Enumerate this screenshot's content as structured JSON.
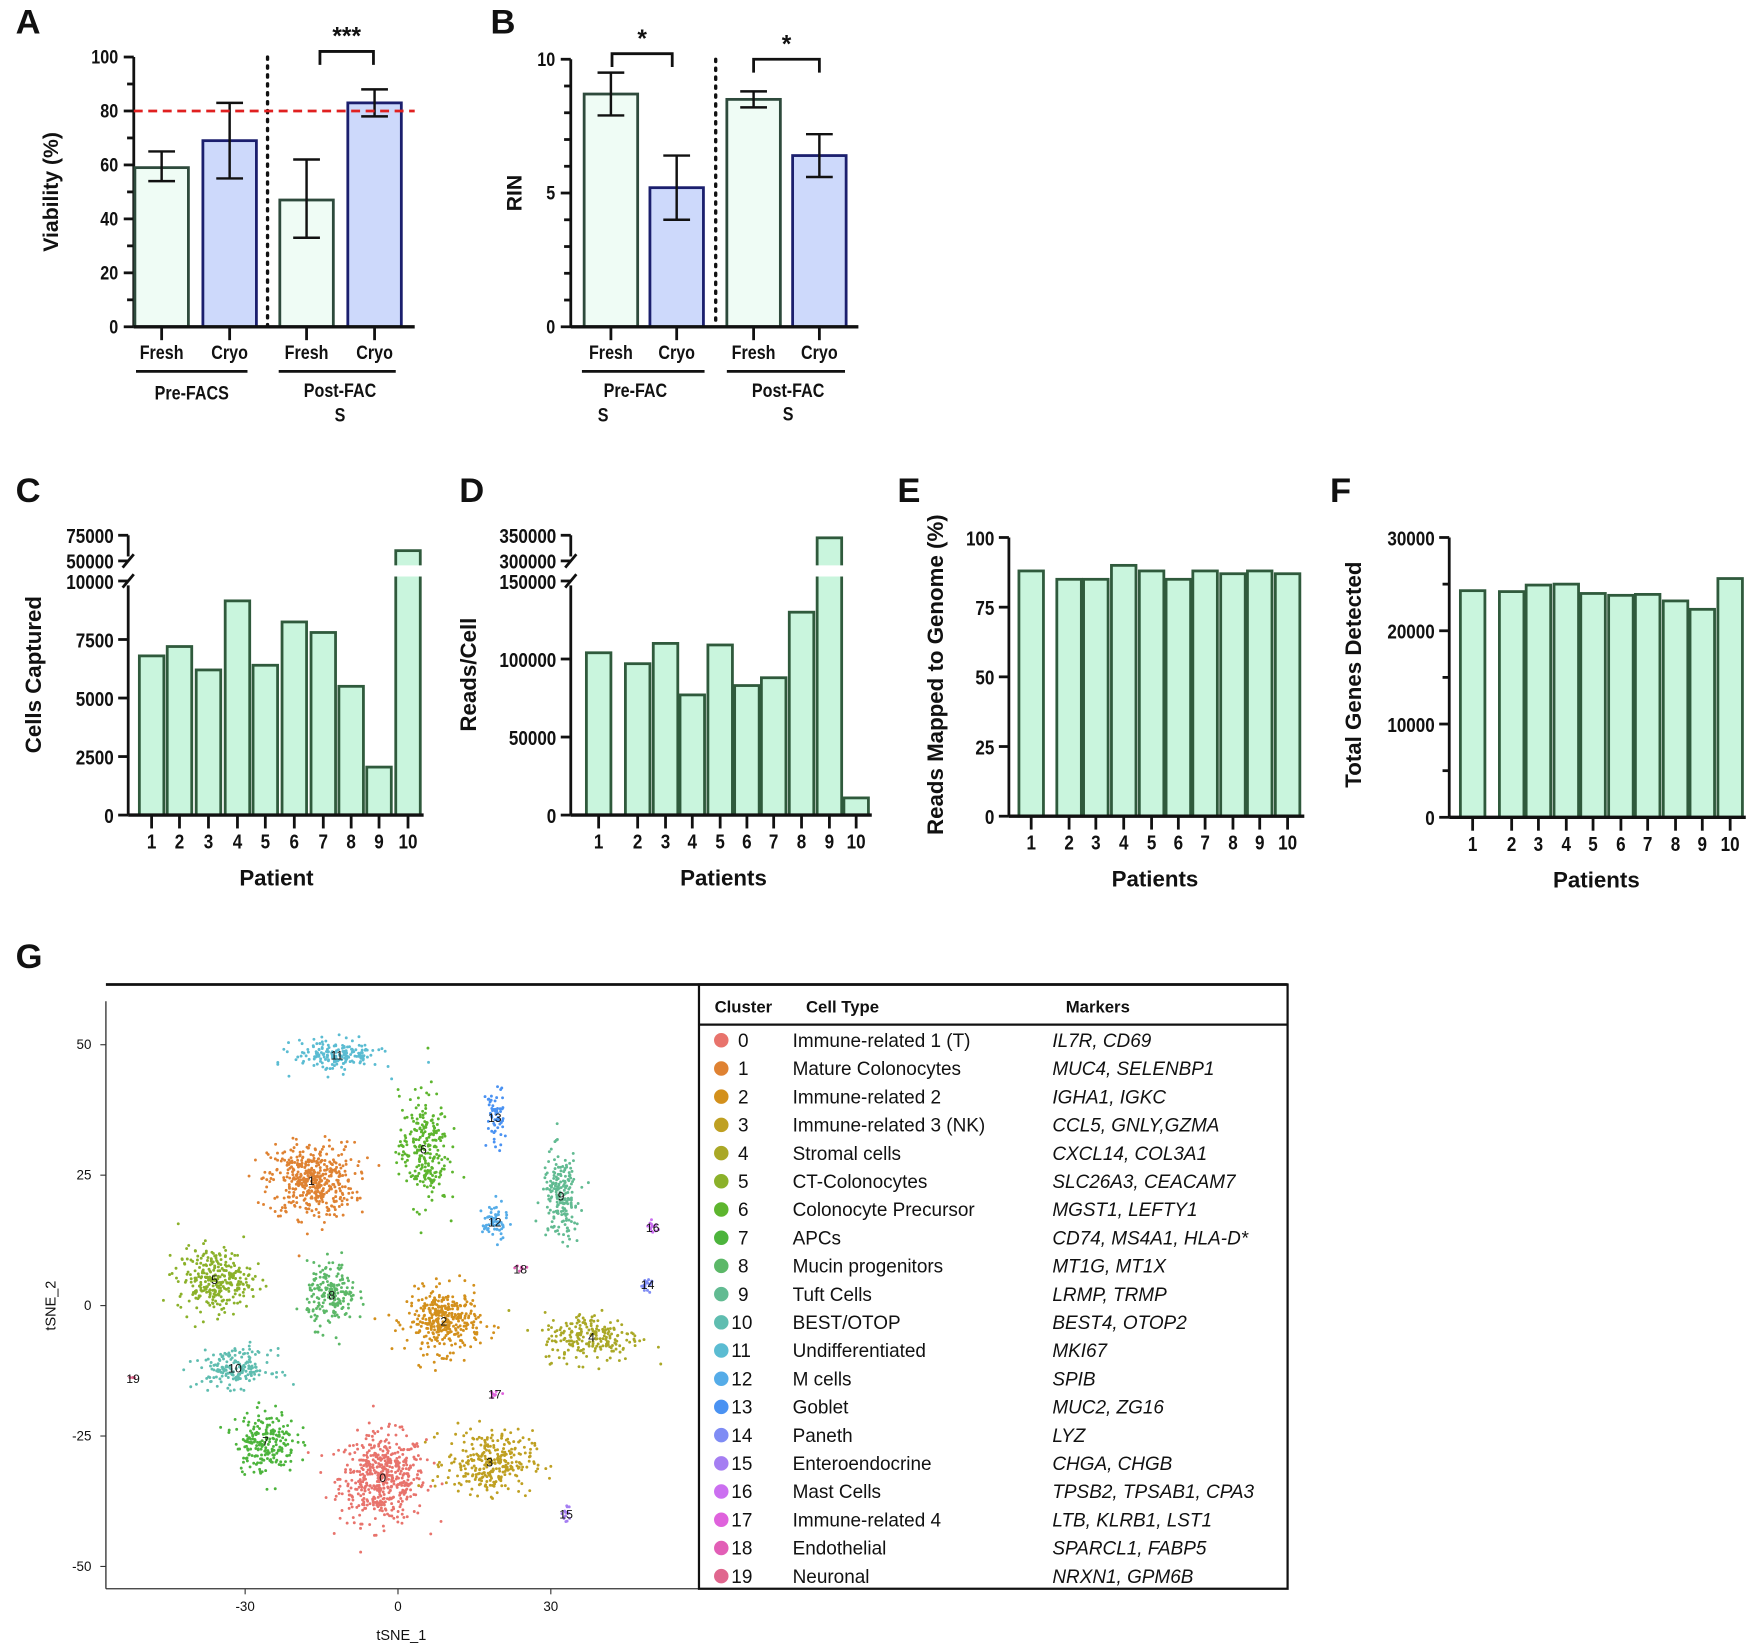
{
  "panel_letters": [
    "A",
    "B",
    "C",
    "D",
    "E",
    "F",
    "G"
  ],
  "chart_data": [
    {
      "id": "A",
      "type": "bar",
      "ylabel": "Viability (%)",
      "ylim": [
        0,
        100
      ],
      "yticks": [
        "0",
        "20",
        "40",
        "60",
        "80",
        "100"
      ],
      "categories": [
        "Fresh",
        "Cryo",
        "Fresh",
        "Cryo"
      ],
      "groups": [
        [
          "Pre-FACS"
        ],
        [
          "Post-FAC",
          "S"
        ]
      ],
      "values": [
        59,
        69,
        47,
        83
      ],
      "error_low": [
        54,
        55,
        33,
        78
      ],
      "error_high": [
        65,
        83,
        62,
        88
      ],
      "threshold": 80,
      "significance": [
        "***"
      ],
      "colors": {
        "fresh_fill": "#effcf5",
        "fresh_stroke": "#2e4a3c",
        "cryo_fill": "#cdd9fb",
        "cryo_stroke": "#1b1f6e",
        "threshold": "#e02020"
      }
    },
    {
      "id": "B",
      "type": "bar",
      "ylabel": "RIN",
      "ylim": [
        0,
        10
      ],
      "yticks": [
        "0",
        "5",
        "10"
      ],
      "categories": [
        "Fresh",
        "Cryo",
        "Fresh",
        "Cryo"
      ],
      "groups": [
        [
          "Pre-FAC",
          "S"
        ],
        [
          "Post-FAC",
          "S"
        ]
      ],
      "values": [
        8.7,
        5.2,
        8.5,
        6.4
      ],
      "error_low": [
        7.9,
        4.0,
        8.2,
        5.6
      ],
      "error_high": [
        9.5,
        6.4,
        8.8,
        7.2
      ],
      "significance": [
        "*",
        "*"
      ]
    },
    {
      "id": "C",
      "type": "bar",
      "xlabel": "Patient",
      "ylabel": "Cells Captured",
      "categories": [
        "1",
        "2",
        "3",
        "4",
        "5",
        "6",
        "7",
        "8",
        "9",
        "10"
      ],
      "values": [
        6800,
        7200,
        6200,
        9150,
        6400,
        8250,
        7800,
        5500,
        2050,
        60000
      ],
      "yticks_lower": [
        "0",
        "2500",
        "5000",
        "7500",
        "10000"
      ],
      "yticks_upper": [
        "50000",
        "75000"
      ],
      "axis_break": [
        10000,
        50000
      ]
    },
    {
      "id": "D",
      "type": "bar",
      "xlabel": "Patients",
      "ylabel": "Reads/Cell",
      "categories": [
        "1",
        "2",
        "3",
        "4",
        "5",
        "6",
        "7",
        "8",
        "9",
        "10"
      ],
      "values": [
        104000,
        97000,
        110000,
        77000,
        109000,
        83000,
        88000,
        130000,
        345000,
        11000
      ],
      "yticks_lower": [
        "0",
        "50000",
        "100000",
        "150000"
      ],
      "yticks_upper": [
        "300000",
        "350000"
      ],
      "axis_break": [
        150000,
        300000
      ]
    },
    {
      "id": "E",
      "type": "bar",
      "xlabel": "Patients",
      "ylabel": "Reads Mapped to Genome (%)",
      "categories": [
        "1",
        "2",
        "3",
        "4",
        "5",
        "6",
        "7",
        "8",
        "9",
        "10"
      ],
      "values": [
        88,
        85,
        85,
        90,
        88,
        85,
        88,
        87,
        88,
        87
      ],
      "ylim": [
        0,
        100
      ],
      "yticks": [
        "0",
        "25",
        "50",
        "75",
        "100"
      ]
    },
    {
      "id": "F",
      "type": "bar",
      "xlabel": "Patients",
      "ylabel": "Total Genes Detected",
      "categories": [
        "1",
        "2",
        "3",
        "4",
        "5",
        "6",
        "7",
        "8",
        "9",
        "10"
      ],
      "values": [
        24300,
        24200,
        24900,
        25000,
        24000,
        23800,
        23900,
        23200,
        22300,
        25600
      ],
      "ylim": [
        0,
        30000
      ],
      "yticks": [
        "0",
        "10000",
        "20000",
        "30000"
      ]
    },
    {
      "id": "G",
      "type": "scatter",
      "xlabel": "tSNE_1",
      "ylabel": "tSNE_2",
      "xticks": [
        "-30",
        "0",
        "30"
      ],
      "yticks": [
        "-50",
        "-25",
        "0",
        "25",
        "50"
      ],
      "xlim": [
        -60,
        60
      ],
      "ylim": [
        -55,
        55
      ],
      "clusters": [
        {
          "id": "0",
          "center": [
            -3,
            -33
          ],
          "spread": [
            7,
            7
          ],
          "n": 520
        },
        {
          "id": "1",
          "center": [
            -17,
            24
          ],
          "spread": [
            7,
            6
          ],
          "n": 460
        },
        {
          "id": "2",
          "center": [
            9,
            -3
          ],
          "spread": [
            6,
            5
          ],
          "n": 360
        },
        {
          "id": "3",
          "center": [
            18,
            -30
          ],
          "spread": [
            7,
            5
          ],
          "n": 300
        },
        {
          "id": "4",
          "center": [
            38,
            -6
          ],
          "spread": [
            8,
            4
          ],
          "n": 220
        },
        {
          "id": "5",
          "center": [
            -36,
            5
          ],
          "spread": [
            6,
            5
          ],
          "n": 300
        },
        {
          "id": "6",
          "center": [
            5,
            30
          ],
          "spread": [
            4,
            9
          ],
          "n": 250
        },
        {
          "id": "7",
          "center": [
            -26,
            -26
          ],
          "spread": [
            5,
            5
          ],
          "n": 220
        },
        {
          "id": "8",
          "center": [
            -13,
            2
          ],
          "spread": [
            4,
            5
          ],
          "n": 200
        },
        {
          "id": "9",
          "center": [
            32,
            21
          ],
          "spread": [
            3,
            7
          ],
          "n": 200
        },
        {
          "id": "10",
          "center": [
            -32,
            -12
          ],
          "spread": [
            6,
            3
          ],
          "n": 180
        },
        {
          "id": "11",
          "center": [
            -12,
            48
          ],
          "spread": [
            7,
            2.5
          ],
          "n": 180
        },
        {
          "id": "12",
          "center": [
            19,
            16
          ],
          "spread": [
            2,
            3
          ],
          "n": 60
        },
        {
          "id": "13",
          "center": [
            19,
            36
          ],
          "spread": [
            1.5,
            5
          ],
          "n": 60
        },
        {
          "id": "14",
          "center": [
            49,
            4
          ],
          "spread": [
            1.2,
            1
          ],
          "n": 20
        },
        {
          "id": "15",
          "center": [
            33,
            -40
          ],
          "spread": [
            0.6,
            1.8
          ],
          "n": 15
        },
        {
          "id": "16",
          "center": [
            50,
            15
          ],
          "spread": [
            0.8,
            1
          ],
          "n": 15
        },
        {
          "id": "17",
          "center": [
            19,
            -17
          ],
          "spread": [
            1,
            0.5
          ],
          "n": 10
        },
        {
          "id": "18",
          "center": [
            24,
            7
          ],
          "spread": [
            1,
            0.5
          ],
          "n": 8
        },
        {
          "id": "19",
          "center": [
            -52,
            -14
          ],
          "spread": [
            0.5,
            0.3
          ],
          "n": 4
        }
      ]
    }
  ],
  "table": {
    "headers": [
      "Cluster",
      "Cell Type",
      "Markers"
    ],
    "rows": [
      {
        "cluster": "0",
        "cell_type": "Immune-related 1 (T)",
        "markers": "IL7R, CD69",
        "color": "#e8736c"
      },
      {
        "cluster": "1",
        "cell_type": "Mature Colonocytes",
        "markers": "MUC4, SELENBP1",
        "color": "#df8232"
      },
      {
        "cluster": "2",
        "cell_type": "Immune-related 2",
        "markers": "IGHA1, IGKC",
        "color": "#d3901c"
      },
      {
        "cluster": "3",
        "cell_type": "Immune-related 3 (NK)",
        "markers": "CCL5, GNLY,GZMA",
        "color": "#bfa022"
      },
      {
        "cluster": "4",
        "cell_type": "Stromal cells",
        "markers": "CXCL14, COL3A1",
        "color": "#aaa826"
      },
      {
        "cluster": "5",
        "cell_type": "CT-Colonocytes",
        "markers": "SLC26A3, CEACAM7",
        "color": "#8bb12a"
      },
      {
        "cluster": "6",
        "cell_type": "Colonocyte Precursor",
        "markers": "MGST1, LEFTY1",
        "color": "#5db52e"
      },
      {
        "cluster": "7",
        "cell_type": "APCs",
        "markers": "CD74, MS4A1, HLA-D*",
        "color": "#4cb43c"
      },
      {
        "cluster": "8",
        "cell_type": "Mucin progenitors",
        "markers": "MT1G, MT1X",
        "color": "#5cb868"
      },
      {
        "cluster": "9",
        "cell_type": "Tuft Cells",
        "markers": "LRMP, TRMP",
        "color": "#62bb92"
      },
      {
        "cluster": "10",
        "cell_type": "BEST/OTOP",
        "markers": "BEST4, OTOP2",
        "color": "#5fbdb0"
      },
      {
        "cluster": "11",
        "cell_type": "Undifferentiated",
        "markers": "MKI67",
        "color": "#5bbcd2"
      },
      {
        "cluster": "12",
        "cell_type": "M cells",
        "markers": "SPIB",
        "color": "#55ace8"
      },
      {
        "cluster": "13",
        "cell_type": "Goblet",
        "markers": "MUC2, ZG16",
        "color": "#4a92f2"
      },
      {
        "cluster": "14",
        "cell_type": "Paneth",
        "markers": "LYZ",
        "color": "#7f8cf4"
      },
      {
        "cluster": "15",
        "cell_type": "Enteroendocrine",
        "markers": "CHGA, CHGB",
        "color": "#a57ef2"
      },
      {
        "cluster": "16",
        "cell_type": "Mast Cells",
        "markers": "TPSB2, TPSAB1, CPA3",
        "color": "#cb6ff0"
      },
      {
        "cluster": "17",
        "cell_type": "Immune-related 4",
        "markers": "LTB, KLRB1, LST1",
        "color": "#df62dc"
      },
      {
        "cluster": "18",
        "cell_type": "Endothelial",
        "markers": "SPARCL1, FABP5",
        "color": "#e25eb6"
      },
      {
        "cluster": "19",
        "cell_type": "Neuronal",
        "markers": "NRXN1, GPM6B",
        "color": "#e0668e"
      }
    ]
  },
  "colors": {
    "bar_fill": "#c9f5dd",
    "bar_stroke": "#2f5a3c",
    "axis": "#111111"
  }
}
